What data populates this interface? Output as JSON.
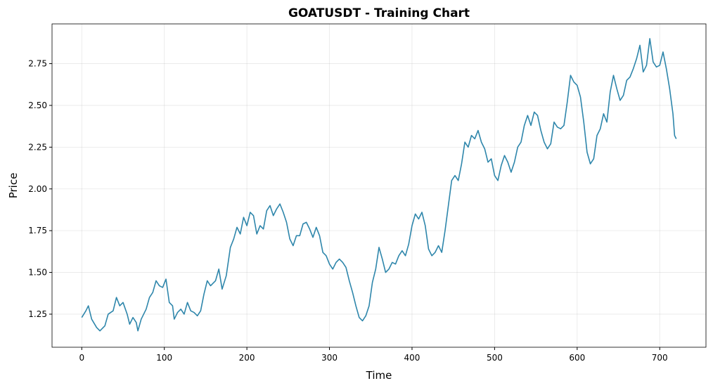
{
  "chart_data": {
    "type": "line",
    "title": "GOATUSDT - Training Chart",
    "x_label": "Time",
    "y_label": "Price",
    "x": [
      0,
      5,
      8,
      12,
      18,
      22,
      28,
      32,
      38,
      42,
      46,
      50,
      55,
      58,
      62,
      66,
      68,
      72,
      78,
      82,
      86,
      90,
      94,
      98,
      102,
      106,
      110,
      112,
      116,
      120,
      124,
      128,
      132,
      136,
      140,
      144,
      148,
      152,
      156,
      162,
      166,
      170,
      175,
      180,
      184,
      188,
      192,
      196,
      200,
      204,
      208,
      212,
      216,
      220,
      224,
      228,
      232,
      236,
      240,
      244,
      248,
      252,
      256,
      260,
      264,
      268,
      272,
      276,
      280,
      284,
      288,
      292,
      296,
      300,
      304,
      308,
      312,
      316,
      320,
      324,
      328,
      332,
      336,
      340,
      344,
      348,
      352,
      356,
      360,
      364,
      368,
      372,
      376,
      380,
      384,
      388,
      392,
      396,
      400,
      404,
      408,
      412,
      416,
      420,
      424,
      428,
      432,
      436,
      440,
      444,
      448,
      452,
      456,
      460,
      464,
      468,
      472,
      476,
      480,
      484,
      488,
      492,
      496,
      500,
      504,
      508,
      512,
      516,
      520,
      524,
      528,
      532,
      536,
      540,
      544,
      548,
      552,
      556,
      560,
      564,
      568,
      572,
      576,
      580,
      584,
      588,
      592,
      596,
      600,
      604,
      608,
      612,
      616,
      620,
      624,
      628,
      632,
      636,
      640,
      644,
      648,
      652,
      656,
      660,
      664,
      668,
      672,
      676,
      680,
      684,
      688,
      692,
      696,
      700,
      704,
      708,
      712,
      716,
      718,
      720
    ],
    "series": [
      {
        "name": "GOATUSDT",
        "color": "#2e86ab",
        "values": [
          1.23,
          1.27,
          1.3,
          1.22,
          1.17,
          1.15,
          1.18,
          1.25,
          1.27,
          1.35,
          1.3,
          1.32,
          1.25,
          1.19,
          1.23,
          1.2,
          1.15,
          1.22,
          1.28,
          1.35,
          1.38,
          1.45,
          1.42,
          1.41,
          1.46,
          1.32,
          1.3,
          1.22,
          1.26,
          1.28,
          1.25,
          1.32,
          1.27,
          1.26,
          1.24,
          1.27,
          1.37,
          1.45,
          1.42,
          1.45,
          1.52,
          1.4,
          1.48,
          1.65,
          1.7,
          1.77,
          1.73,
          1.83,
          1.78,
          1.86,
          1.84,
          1.73,
          1.78,
          1.76,
          1.87,
          1.9,
          1.84,
          1.88,
          1.91,
          1.86,
          1.8,
          1.7,
          1.66,
          1.72,
          1.72,
          1.79,
          1.8,
          1.76,
          1.71,
          1.77,
          1.72,
          1.62,
          1.6,
          1.55,
          1.52,
          1.56,
          1.58,
          1.56,
          1.53,
          1.45,
          1.38,
          1.3,
          1.23,
          1.21,
          1.24,
          1.3,
          1.44,
          1.52,
          1.65,
          1.58,
          1.5,
          1.52,
          1.56,
          1.55,
          1.6,
          1.63,
          1.6,
          1.67,
          1.78,
          1.85,
          1.82,
          1.86,
          1.78,
          1.64,
          1.6,
          1.62,
          1.66,
          1.62,
          1.75,
          1.9,
          2.05,
          2.08,
          2.05,
          2.15,
          2.28,
          2.25,
          2.32,
          2.3,
          2.35,
          2.28,
          2.24,
          2.16,
          2.18,
          2.08,
          2.05,
          2.14,
          2.2,
          2.16,
          2.1,
          2.16,
          2.25,
          2.28,
          2.38,
          2.44,
          2.38,
          2.46,
          2.44,
          2.35,
          2.28,
          2.24,
          2.27,
          2.4,
          2.37,
          2.36,
          2.38,
          2.52,
          2.68,
          2.64,
          2.62,
          2.55,
          2.4,
          2.22,
          2.15,
          2.18,
          2.32,
          2.36,
          2.45,
          2.4,
          2.58,
          2.68,
          2.6,
          2.53,
          2.56,
          2.65,
          2.67,
          2.72,
          2.78,
          2.86,
          2.7,
          2.74,
          2.9,
          2.76,
          2.73,
          2.74,
          2.82,
          2.72,
          2.6,
          2.45,
          2.32,
          2.3
        ]
      }
    ],
    "xlim": [
      -36,
      756
    ],
    "xticks": [
      0,
      100,
      200,
      300,
      400,
      500,
      600,
      700
    ],
    "ylim": [
      1.052,
      2.988
    ],
    "yticks": [
      1.25,
      {
        "value": 1.5,
        "label": "1.50"
      },
      1.75,
      {
        "value": 2.0,
        "label": "2.00"
      },
      2.25,
      {
        "value": 2.5,
        "label": "2.50"
      },
      2.75
    ],
    "grid": true
  }
}
